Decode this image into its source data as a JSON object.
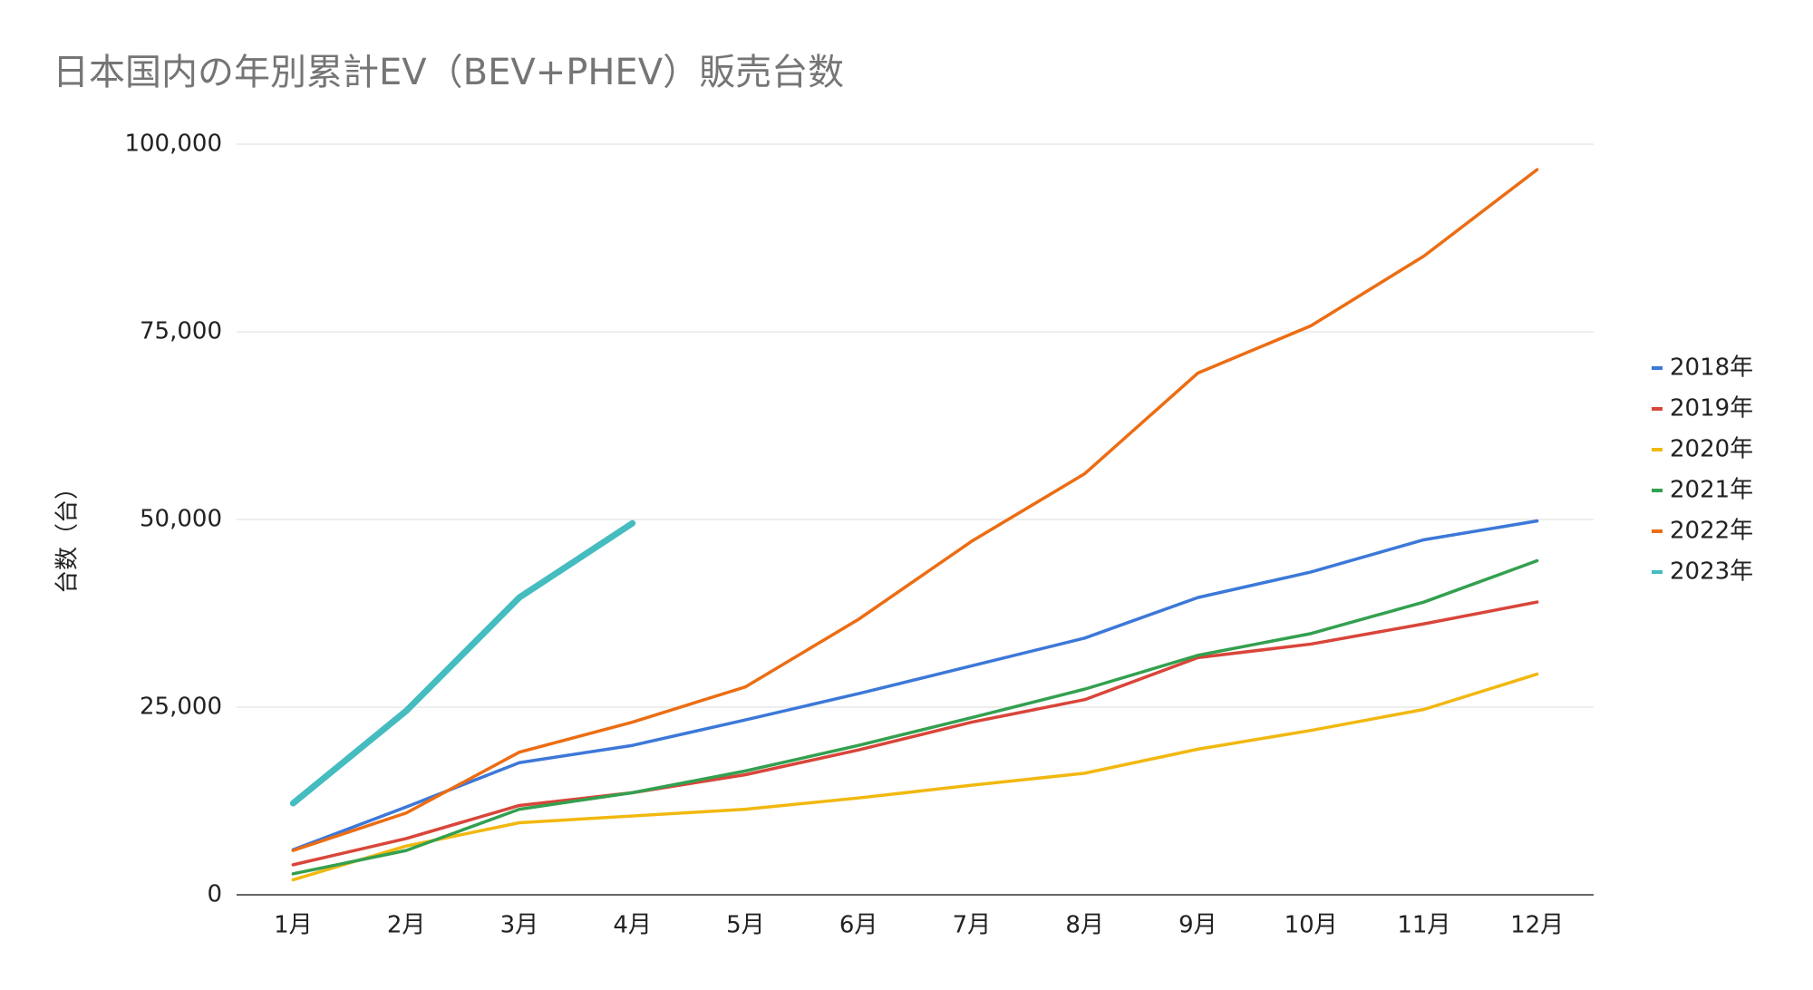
{
  "chart_data": {
    "type": "line",
    "title": "日本国内の年別累計EV（BEV+PHEV）販売台数",
    "ylabel": "台数（台）",
    "categories": [
      "1月",
      "2月",
      "3月",
      "4月",
      "5月",
      "6月",
      "7月",
      "8月",
      "9月",
      "10月",
      "11月",
      "12月"
    ],
    "series": [
      {
        "name": "2018年",
        "color": "#3c78d8",
        "values": [
          6000,
          11700,
          17600,
          19900,
          23300,
          26800,
          30500,
          34200,
          39600,
          43000,
          47300,
          49800
        ]
      },
      {
        "name": "2019年",
        "color": "#d9453a",
        "values": [
          4000,
          7500,
          11900,
          13600,
          16000,
          19300,
          23000,
          26000,
          31600,
          33400,
          36100,
          39000
        ]
      },
      {
        "name": "2020年",
        "color": "#f1b80f",
        "values": [
          2000,
          6500,
          9600,
          10500,
          11400,
          12900,
          14600,
          16200,
          19400,
          21900,
          24700,
          29400
        ]
      },
      {
        "name": "2021年",
        "color": "#33a04f",
        "values": [
          2800,
          5900,
          11400,
          13600,
          16500,
          19900,
          23600,
          27400,
          31900,
          34800,
          39000,
          44500
        ]
      },
      {
        "name": "2022年",
        "color": "#ec6d13",
        "values": [
          5900,
          10900,
          19000,
          23000,
          27700,
          36700,
          47100,
          56100,
          69500,
          75800,
          85100,
          96600
        ]
      },
      {
        "name": "2023年",
        "color": "#45bcbf",
        "values": [
          12200,
          24500,
          39600,
          49500,
          null,
          null,
          null,
          null,
          null,
          null,
          null,
          null
        ]
      }
    ],
    "ylim": [
      0,
      100000
    ],
    "yticks": [
      0,
      {
        "value": 25000,
        "label": "25,000"
      },
      {
        "value": 50000,
        "label": "50,000"
      },
      {
        "value": 75000,
        "label": "75,000"
      },
      {
        "value": 100000,
        "label": "100,000"
      }
    ],
    "grid": true,
    "legend": "right"
  }
}
